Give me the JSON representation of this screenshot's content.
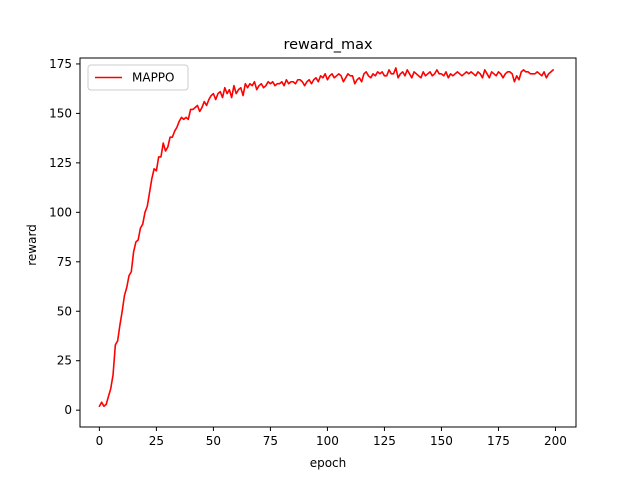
{
  "chart_data": {
    "type": "line",
    "title": "reward_max",
    "xlabel": "epoch",
    "ylabel": "reward",
    "xlim": [
      -8.5,
      209
    ],
    "ylim": [
      -8.5,
      178
    ],
    "xticks": [
      0,
      25,
      50,
      75,
      100,
      125,
      150,
      175,
      200
    ],
    "yticks": [
      0,
      25,
      50,
      75,
      100,
      125,
      150,
      175
    ],
    "grid": false,
    "legend_position": "top-left",
    "series": [
      {
        "name": "MAPPO",
        "color": "#ff0000",
        "x": [
          0,
          1,
          2,
          3,
          4,
          5,
          6,
          7,
          8,
          9,
          10,
          11,
          12,
          13,
          14,
          15,
          16,
          17,
          18,
          19,
          20,
          21,
          22,
          23,
          24,
          25,
          26,
          27,
          28,
          29,
          30,
          31,
          32,
          33,
          34,
          35,
          36,
          37,
          38,
          39,
          40,
          41,
          42,
          43,
          44,
          45,
          46,
          47,
          48,
          49,
          50,
          51,
          52,
          53,
          54,
          55,
          56,
          57,
          58,
          59,
          60,
          61,
          62,
          63,
          64,
          65,
          66,
          67,
          68,
          69,
          70,
          71,
          72,
          73,
          74,
          75,
          76,
          77,
          78,
          79,
          80,
          81,
          82,
          83,
          84,
          85,
          86,
          87,
          88,
          89,
          90,
          91,
          92,
          93,
          94,
          95,
          96,
          97,
          98,
          99,
          100,
          101,
          102,
          103,
          104,
          105,
          106,
          107,
          108,
          109,
          110,
          111,
          112,
          113,
          114,
          115,
          116,
          117,
          118,
          119,
          120,
          121,
          122,
          123,
          124,
          125,
          126,
          127,
          128,
          129,
          130,
          131,
          132,
          133,
          134,
          135,
          136,
          137,
          138,
          139,
          140,
          141,
          142,
          143,
          144,
          145,
          146,
          147,
          148,
          149,
          150,
          151,
          152,
          153,
          154,
          155,
          156,
          157,
          158,
          159,
          160,
          161,
          162,
          163,
          164,
          165,
          166,
          167,
          168,
          169,
          170,
          171,
          172,
          173,
          174,
          175,
          176,
          177,
          178,
          179,
          180,
          181,
          182,
          183,
          184,
          185,
          186,
          187,
          188,
          189,
          190,
          191,
          192,
          193,
          194,
          195,
          196,
          197,
          198,
          199
        ],
        "values": [
          2,
          4,
          2,
          3,
          7,
          11,
          18,
          33,
          35,
          43,
          50,
          58,
          62,
          68,
          70,
          80,
          85,
          86,
          92,
          94,
          100,
          103,
          110,
          117,
          122,
          121,
          128,
          128,
          135,
          131,
          133,
          138,
          138,
          141,
          143,
          146,
          148,
          147,
          148,
          147,
          152,
          152,
          153,
          154,
          151,
          153,
          156,
          154,
          157,
          159,
          160,
          157,
          160,
          161,
          158,
          163,
          160,
          162,
          158,
          164,
          160,
          162,
          163,
          159,
          165,
          163,
          165,
          164,
          166,
          162,
          164,
          165,
          163,
          164,
          166,
          165,
          166,
          164,
          165,
          165,
          166,
          164,
          167,
          165,
          166,
          166,
          165,
          167,
          167,
          166,
          164,
          166,
          167,
          165,
          167,
          168,
          166,
          169,
          168,
          170,
          167,
          169,
          170,
          168,
          169,
          170,
          169,
          166,
          168,
          170,
          169,
          169,
          165,
          167,
          168,
          166,
          170,
          171,
          169,
          168,
          170,
          169,
          171,
          170,
          171,
          169,
          169,
          172,
          170,
          170,
          173,
          168,
          170,
          171,
          169,
          172,
          170,
          168,
          171,
          170,
          169,
          168,
          171,
          169,
          170,
          171,
          169,
          170,
          172,
          170,
          170,
          169,
          171,
          168,
          170,
          169,
          170,
          171,
          170,
          169,
          170,
          171,
          170,
          171,
          170,
          169,
          171,
          170,
          168,
          172,
          170,
          168,
          171,
          170,
          169,
          171,
          170,
          168,
          170,
          171,
          171,
          170,
          166,
          169,
          167,
          171,
          172,
          171,
          171,
          170,
          170,
          170,
          171,
          170,
          169,
          171,
          168,
          170,
          171,
          172
        ]
      }
    ]
  }
}
